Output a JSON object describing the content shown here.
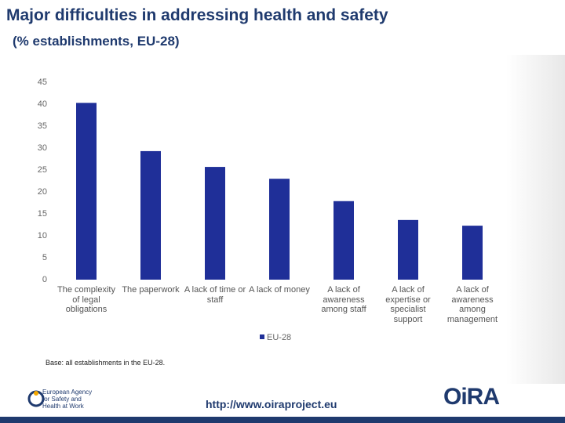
{
  "chart_data": {
    "type": "bar",
    "title": "Major difficulties in addressing health and safety",
    "subtitle": "(% establishments, EU-28)",
    "categories": [
      "The complexity of legal obligations",
      "The paperwork",
      "A lack of time or staff",
      "A lack of money",
      "A lack of awareness among staff",
      "A lack of expertise or specialist support",
      "A lack of awareness among management"
    ],
    "series": [
      {
        "name": "EU-28",
        "color": "#1f2f98",
        "values": [
          40.3,
          29.3,
          25.7,
          23,
          17.9,
          13.6,
          12.3
        ]
      }
    ],
    "ylim": [
      0,
      45
    ],
    "yticks": [
      0,
      5,
      10,
      15,
      20,
      25,
      30,
      35,
      40,
      45
    ],
    "grid": false,
    "note": "Base: all establishments in the EU-28."
  },
  "footer": {
    "agency": "European Agency for Safety and Health at Work",
    "url": "http://www.oiraproject.eu",
    "logo": "OiRA"
  }
}
